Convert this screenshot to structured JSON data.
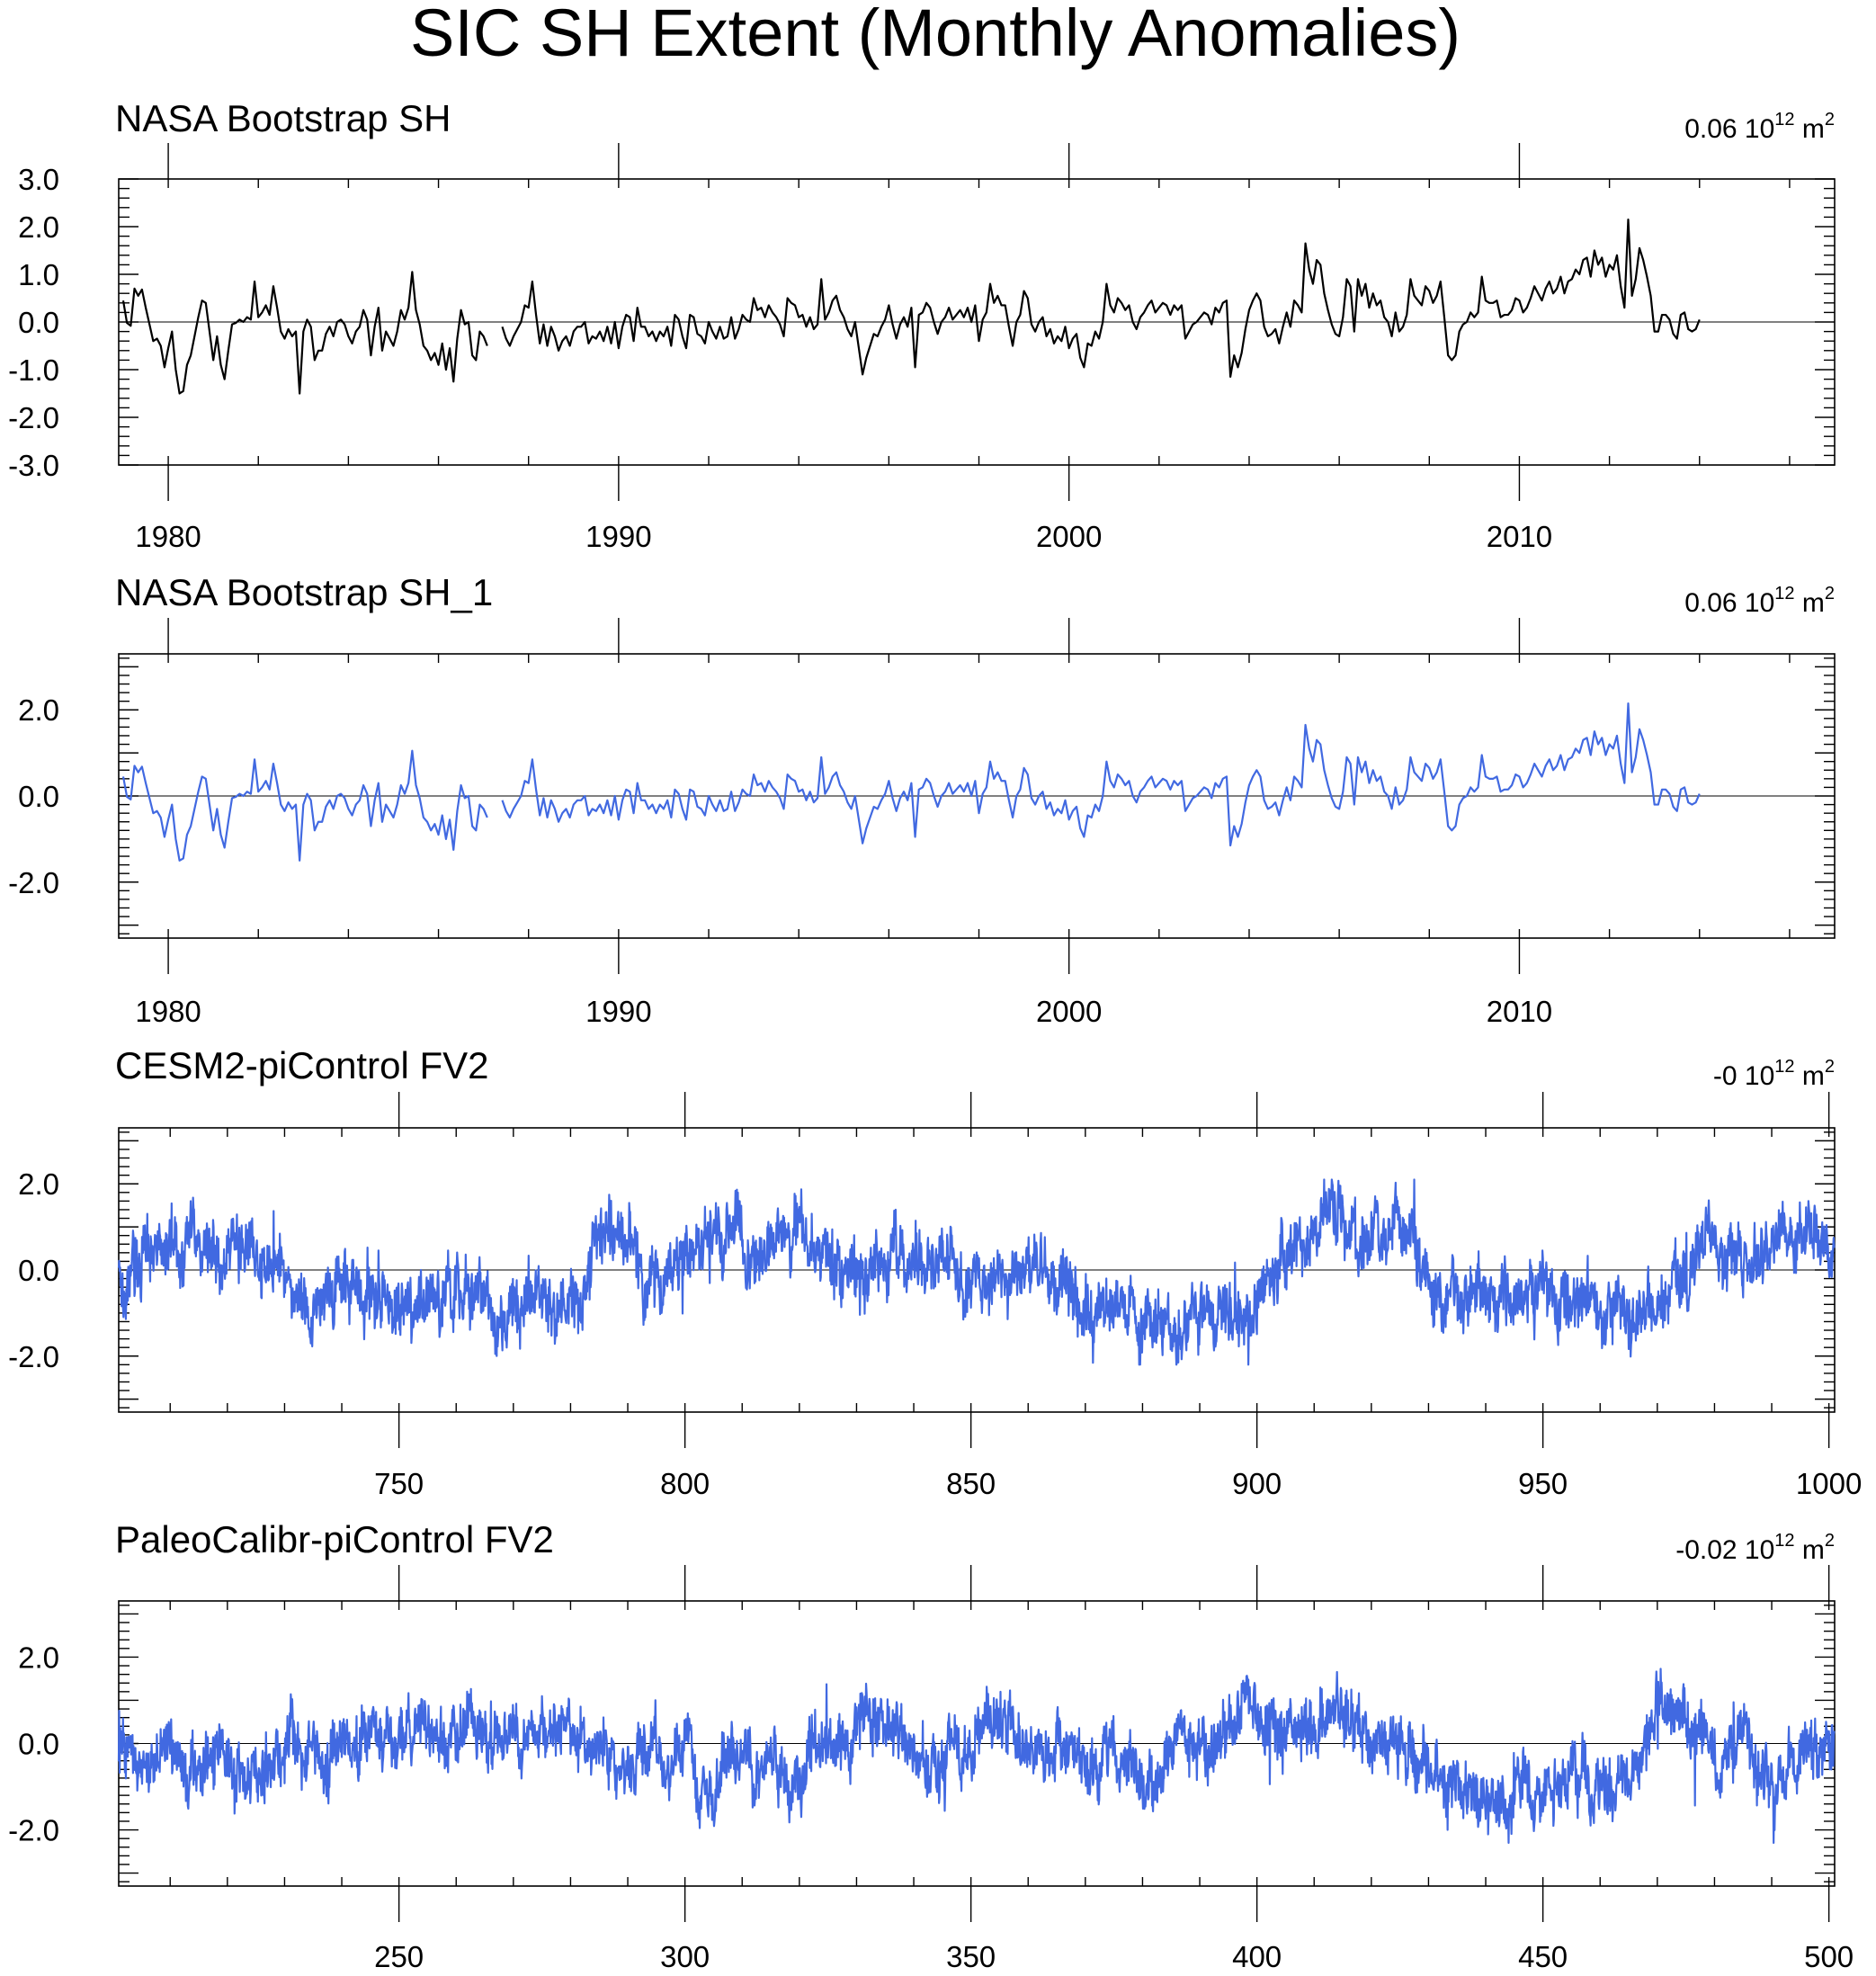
{
  "title": "SIC SH Extent (Monthly Anomalies)",
  "unit_base": "10",
  "unit_exp": "12",
  "unit_m": "m",
  "unit_exp2": "2",
  "chart_data": [
    {
      "type": "line",
      "title": "NASA Bootstrap SH",
      "mean_label": "0.06",
      "color": "#000000",
      "x_range": [
        1978.9,
        2017.0
      ],
      "x_ticks": [
        1980,
        1990,
        2000,
        2010
      ],
      "x_tick_labels": [
        "1980",
        "1990",
        "2000",
        "2010"
      ],
      "ylim": [
        -3.0,
        3.0
      ],
      "y_ticks": [
        3.0,
        2.0,
        1.0,
        0.0,
        -1.0,
        -2.0,
        -3.0
      ],
      "y_tick_labels": [
        "3.0",
        "2.0",
        "1.0",
        "0.0",
        "-1.0",
        "-2.0",
        "-3.0"
      ],
      "series": [
        {
          "name": "NASA Bootstrap SH",
          "x_start": 1979.0,
          "x_step": 0.0833333,
          "gaps": [
            [
              1988.0,
              1988.25
            ]
          ],
          "values": [
            0.45,
            -0.02,
            -0.08,
            0.7,
            0.55,
            0.68,
            0.3,
            -0.05,
            -0.4,
            -0.35,
            -0.5,
            -0.95,
            -0.55,
            -0.2,
            -1.0,
            -1.5,
            -1.45,
            -0.9,
            -0.7,
            -0.3,
            0.1,
            0.45,
            0.4,
            -0.2,
            -0.8,
            -0.3,
            -0.9,
            -1.2,
            -0.6,
            -0.05,
            -0.02,
            0.05,
            0.0,
            0.1,
            0.05,
            0.85,
            0.1,
            0.2,
            0.35,
            0.15,
            0.75,
            0.3,
            -0.2,
            -0.35,
            -0.15,
            -0.3,
            -0.2,
            -1.5,
            -0.2,
            0.05,
            -0.1,
            -0.8,
            -0.6,
            -0.6,
            -0.25,
            -0.1,
            -0.3,
            0.0,
            0.05,
            -0.05,
            -0.3,
            -0.45,
            -0.2,
            -0.1,
            0.25,
            0.05,
            -0.7,
            -0.1,
            0.3,
            -0.6,
            -0.2,
            -0.35,
            -0.5,
            -0.2,
            0.25,
            0.05,
            0.3,
            1.05,
            0.25,
            -0.05,
            -0.5,
            -0.6,
            -0.8,
            -0.65,
            -0.9,
            -0.45,
            -1.0,
            -0.55,
            -1.25,
            -0.35,
            0.25,
            -0.05,
            0.0,
            -0.7,
            -0.8,
            -0.2,
            -0.3,
            -0.5,
            null,
            null,
            null,
            -0.1,
            -0.35,
            -0.5,
            -0.3,
            -0.15,
            0.0,
            0.35,
            0.3,
            0.85,
            0.15,
            -0.45,
            -0.05,
            -0.5,
            -0.1,
            -0.3,
            -0.6,
            -0.4,
            -0.3,
            -0.5,
            -0.2,
            -0.1,
            -0.1,
            0.0,
            -0.45,
            -0.3,
            -0.35,
            -0.2,
            -0.4,
            -0.1,
            -0.45,
            0.0,
            -0.55,
            -0.1,
            0.15,
            0.1,
            -0.4,
            0.3,
            -0.1,
            -0.1,
            -0.3,
            -0.2,
            -0.4,
            -0.2,
            -0.3,
            -0.1,
            -0.5,
            0.15,
            0.05,
            -0.3,
            -0.55,
            0.15,
            0.1,
            -0.25,
            -0.3,
            -0.45,
            0.0,
            -0.2,
            -0.35,
            -0.1,
            -0.35,
            -0.3,
            0.1,
            -0.35,
            -0.15,
            0.15,
            0.05,
            0.0,
            0.5,
            0.25,
            0.3,
            0.1,
            0.35,
            0.2,
            0.1,
            -0.05,
            -0.3,
            0.5,
            0.4,
            0.35,
            0.1,
            0.15,
            -0.1,
            0.1,
            -0.15,
            -0.05,
            0.9,
            0.05,
            0.2,
            0.45,
            0.55,
            0.25,
            0.1,
            -0.15,
            -0.3,
            0.0,
            -0.55,
            -1.1,
            -0.75,
            -0.5,
            -0.25,
            -0.3,
            -0.1,
            0.05,
            0.35,
            -0.05,
            -0.35,
            -0.05,
            0.1,
            -0.1,
            0.3,
            -0.95,
            0.15,
            0.2,
            0.4,
            0.3,
            0.0,
            -0.25,
            0.0,
            0.1,
            0.3,
            0.05,
            0.15,
            0.25,
            0.1,
            0.3,
            0.0,
            0.35,
            -0.4,
            0.05,
            0.2,
            0.8,
            0.4,
            0.55,
            0.35,
            0.35,
            -0.1,
            -0.5,
            0.0,
            0.15,
            0.65,
            0.5,
            -0.05,
            -0.2,
            0.0,
            0.1,
            -0.3,
            -0.15,
            -0.45,
            -0.3,
            -0.4,
            -0.1,
            -0.55,
            -0.35,
            -0.25,
            -0.75,
            -0.95,
            -0.45,
            -0.5,
            -0.2,
            -0.35,
            0.0,
            0.8,
            0.35,
            0.2,
            0.5,
            0.4,
            0.25,
            0.35,
            0.0,
            -0.15,
            0.1,
            0.2,
            0.35,
            0.45,
            0.2,
            0.3,
            0.4,
            0.35,
            0.15,
            0.35,
            0.25,
            0.35,
            -0.35,
            -0.2,
            -0.05,
            0.0,
            0.1,
            0.2,
            0.15,
            -0.05,
            0.3,
            0.2,
            0.4,
            0.45,
            -1.15,
            -0.7,
            -0.95,
            -0.65,
            -0.15,
            0.25,
            0.45,
            0.6,
            0.45,
            -0.1,
            -0.3,
            -0.25,
            -0.15,
            -0.45,
            -0.1,
            0.2,
            -0.1,
            0.45,
            0.35,
            0.2,
            1.65,
            1.1,
            0.8,
            1.3,
            1.2,
            0.6,
            0.25,
            -0.05,
            -0.25,
            -0.3,
            0.1,
            0.9,
            0.75,
            -0.2,
            0.9,
            0.55,
            0.8,
            0.3,
            0.6,
            0.35,
            0.45,
            0.1,
            0.0,
            -0.3,
            0.2,
            -0.2,
            -0.1,
            0.15,
            0.9,
            0.55,
            0.45,
            0.35,
            0.75,
            0.65,
            0.4,
            0.55,
            0.85,
            0.1,
            -0.7,
            -0.8,
            -0.7,
            -0.2,
            -0.05,
            0.0,
            0.2,
            0.1,
            0.2,
            0.95,
            0.45,
            0.4,
            0.4,
            0.45,
            0.1,
            0.15,
            0.15,
            0.25,
            0.5,
            0.45,
            0.2,
            0.3,
            0.5,
            0.75,
            0.6,
            0.45,
            0.7,
            0.85,
            0.6,
            0.7,
            0.95,
            0.6,
            0.85,
            0.9,
            1.1,
            1.0,
            1.3,
            1.35,
            0.95,
            1.5,
            1.2,
            1.35,
            0.95,
            1.2,
            1.1,
            1.4,
            0.75,
            0.3,
            2.15,
            0.55,
            0.9,
            1.55,
            1.3,
            0.95,
            0.55,
            -0.2,
            -0.2,
            0.15,
            0.15,
            0.05,
            -0.25,
            -0.35,
            0.15,
            0.2,
            -0.15,
            -0.2,
            -0.15,
            0.05
          ]
        }
      ]
    },
    {
      "type": "line",
      "title": "NASA Bootstrap SH_1",
      "mean_label": "0.06",
      "color": "#4169e1",
      "x_range": [
        1978.9,
        2017.0
      ],
      "x_ticks": [
        1980,
        1990,
        2000,
        2010
      ],
      "x_tick_labels": [
        "1980",
        "1990",
        "2000",
        "2010"
      ],
      "ylim": [
        -3.3,
        3.3
      ],
      "y_ticks": [
        2.0,
        0.0,
        -2.0
      ],
      "y_tick_labels": [
        "2.0",
        "0.0",
        "-2.0"
      ],
      "series": [
        {
          "name": "NASA Bootstrap SH_1",
          "same_as_panel": 0
        }
      ]
    },
    {
      "type": "line",
      "title": "CESM2-piControl FV2",
      "mean_label": "-0",
      "color": "#4169e1",
      "x_range": [
        701,
        1001
      ],
      "x_ticks": [
        750,
        800,
        850,
        900,
        950,
        1000
      ],
      "x_tick_labels": [
        "750",
        "800",
        "850",
        "900",
        "950",
        "1000"
      ],
      "ylim": [
        -3.3,
        3.3
      ],
      "y_ticks": [
        2.0,
        0.0,
        -2.0
      ],
      "y_tick_labels": [
        "2.0",
        "0.0",
        "-2.0"
      ],
      "series": [
        {
          "name": "CESM2-piControl FV2",
          "n_months": 3600,
          "amplitude": 0.65,
          "range": [
            -2.2,
            2.1
          ],
          "seed": 17
        }
      ]
    },
    {
      "type": "line",
      "title": "PaleoCalibr-piControl FV2",
      "mean_label": "-0.02",
      "color": "#4169e1",
      "x_range": [
        201,
        501
      ],
      "x_ticks": [
        250,
        300,
        350,
        400,
        450,
        500
      ],
      "x_tick_labels": [
        "250",
        "300",
        "350",
        "400",
        "450",
        "500"
      ],
      "ylim": [
        -3.3,
        3.3
      ],
      "y_ticks": [
        2.0,
        0.0,
        -2.0
      ],
      "y_tick_labels": [
        "2.0",
        "0.0",
        "-2.0"
      ],
      "series": [
        {
          "name": "PaleoCalibr-piControl FV2",
          "n_months": 3600,
          "amplitude": 0.62,
          "range": [
            -2.3,
            2.05
          ],
          "seed": 91
        }
      ]
    }
  ]
}
